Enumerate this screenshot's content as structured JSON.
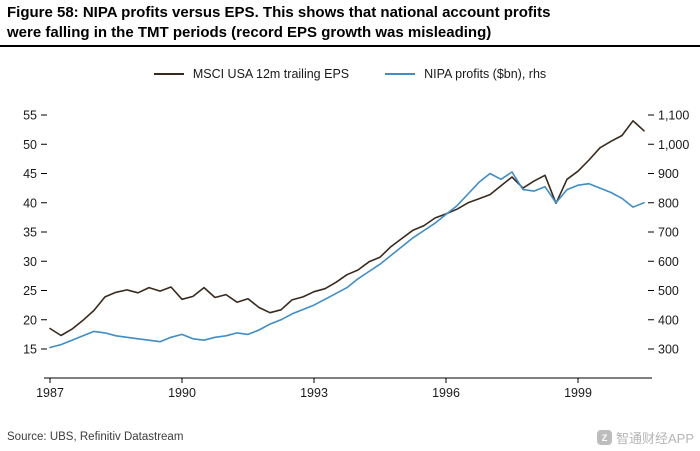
{
  "figure": {
    "title_line1": "Figure 58: NIPA profits versus EPS. This shows that national account profits",
    "title_line2": "were falling in the TMT periods (record EPS growth was misleading)",
    "source": "Source: UBS, Refinitiv Datastream",
    "watermark_text": "智通财经APP",
    "watermark_logo_letter": "Z"
  },
  "legend": [
    {
      "label": "MSCI USA 12m trailing EPS",
      "color": "#3a2a1e"
    },
    {
      "label": "NIPA profits ($bn), rhs",
      "color": "#3f8ec7"
    }
  ],
  "chart_data": {
    "type": "line",
    "title": "Figure 58: NIPA profits versus EPS",
    "grid": false,
    "legend_position": "top",
    "x_range": [
      1987,
      2000.5
    ],
    "x_ticks": [
      1987,
      1990,
      1993,
      1996,
      1999
    ],
    "left_axis": {
      "label": "MSCI USA 12m trailing EPS",
      "range": [
        15,
        55
      ],
      "ticks": [
        55,
        50,
        45,
        40,
        35,
        30,
        25,
        20,
        15
      ]
    },
    "right_axis": {
      "label": "NIPA profits ($bn)",
      "range": [
        300,
        1100
      ],
      "ticks": [
        "1,100",
        "1,000",
        "900",
        "800",
        "700",
        "600",
        "500",
        "400",
        "300"
      ]
    },
    "x": [
      1987,
      1987.25,
      1987.5,
      1987.75,
      1988,
      1988.25,
      1988.5,
      1988.75,
      1989,
      1989.25,
      1989.5,
      1989.75,
      1990,
      1990.25,
      1990.5,
      1990.75,
      1991,
      1991.25,
      1991.5,
      1991.75,
      1992,
      1992.25,
      1992.5,
      1992.75,
      1993,
      1993.25,
      1993.5,
      1993.75,
      1994,
      1994.25,
      1994.5,
      1994.75,
      1995,
      1995.25,
      1995.5,
      1995.75,
      1996,
      1996.25,
      1996.5,
      1996.75,
      1997,
      1997.25,
      1997.5,
      1997.75,
      1998,
      1998.25,
      1998.5,
      1998.75,
      1999,
      1999.25,
      1999.5,
      1999.75,
      2000,
      2000.25,
      2000.5
    ],
    "series": [
      {
        "name": "MSCI USA 12m trailing EPS",
        "axis": "left",
        "color": "#3a2a1e",
        "values": [
          18.5,
          17.3,
          18.4,
          19.9,
          21.6,
          23.9,
          24.7,
          25.1,
          24.6,
          25.5,
          24.9,
          25.6,
          23.5,
          24.0,
          25.5,
          23.8,
          24.3,
          23.0,
          23.6,
          22.1,
          21.2,
          21.7,
          23.4,
          23.9,
          24.8,
          25.3,
          26.4,
          27.7,
          28.5,
          29.9,
          30.7,
          32.5,
          33.9,
          35.3,
          36.1,
          37.4,
          38.1,
          38.9,
          40.0,
          40.7,
          41.4,
          42.9,
          44.4,
          42.5,
          43.7,
          44.7,
          39.9,
          44.0,
          45.4,
          47.3,
          49.4,
          50.5,
          51.5,
          54.0,
          52.3
        ]
      },
      {
        "name": "NIPA profits ($bn), rhs",
        "axis": "right",
        "color": "#3f8ec7",
        "values": [
          305,
          315,
          330,
          345,
          360,
          355,
          345,
          340,
          335,
          330,
          325,
          340,
          350,
          335,
          330,
          340,
          345,
          355,
          350,
          365,
          385,
          400,
          420,
          435,
          450,
          470,
          490,
          510,
          540,
          565,
          590,
          620,
          650,
          680,
          705,
          730,
          760,
          790,
          830,
          870,
          900,
          880,
          905,
          845,
          840,
          855,
          800,
          845,
          860,
          865,
          850,
          835,
          815,
          785,
          800
        ]
      }
    ]
  }
}
